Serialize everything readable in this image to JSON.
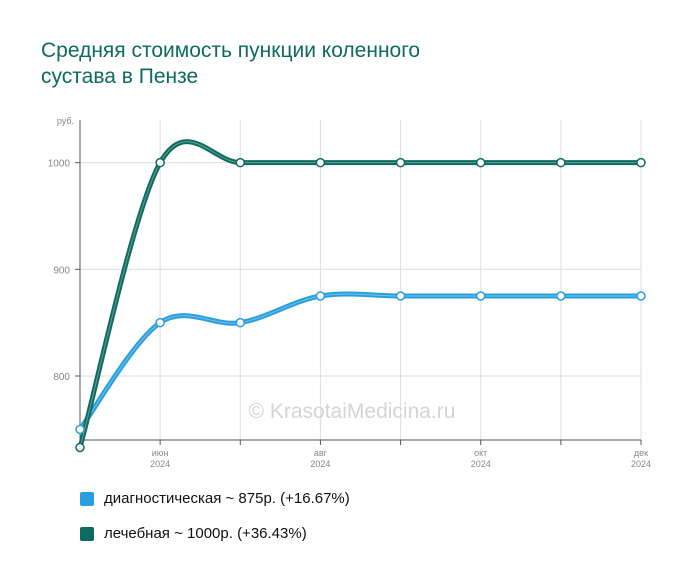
{
  "title_lines": [
    "Средняя стоимость пункции коленного",
    "сустава в Пензе"
  ],
  "watermark": "© KrasotaiMedicina.ru",
  "chart_data": {
    "type": "line",
    "ylabel": "руб.",
    "ylim": [
      740,
      1040
    ],
    "yticks": [
      800,
      900,
      1000
    ],
    "x": [
      "2024-05",
      "2024-06",
      "2024-07",
      "2024-08",
      "2024-09",
      "2024-10",
      "2024-11",
      "2024-12"
    ],
    "xtick_labels": [
      {
        "x": "2024-06",
        "month": "июн",
        "year": "2024"
      },
      {
        "x": "2024-08",
        "month": "авг",
        "year": "2024"
      },
      {
        "x": "2024-10",
        "month": "окт",
        "year": "2024"
      },
      {
        "x": "2024-12",
        "month": "дек",
        "year": "2024"
      }
    ],
    "series": [
      {
        "name": "диагностическая",
        "color": "#2a9fdf",
        "values": [
          750,
          850,
          850,
          875,
          875,
          875,
          875,
          875
        ]
      },
      {
        "name": "лечебная",
        "color": "#0e6b60",
        "values": [
          733,
          1000,
          1000,
          1000,
          1000,
          1000,
          1000,
          1000
        ]
      }
    ],
    "grid": true,
    "legend_position": "bottom-left"
  },
  "legend": [
    {
      "label": "диагностическая ~ 875р. (+16.67%)",
      "color": "#2a9fdf"
    },
    {
      "label": "лечебная ~ 1000р. (+36.43%)",
      "color": "#0e6b60"
    }
  ]
}
